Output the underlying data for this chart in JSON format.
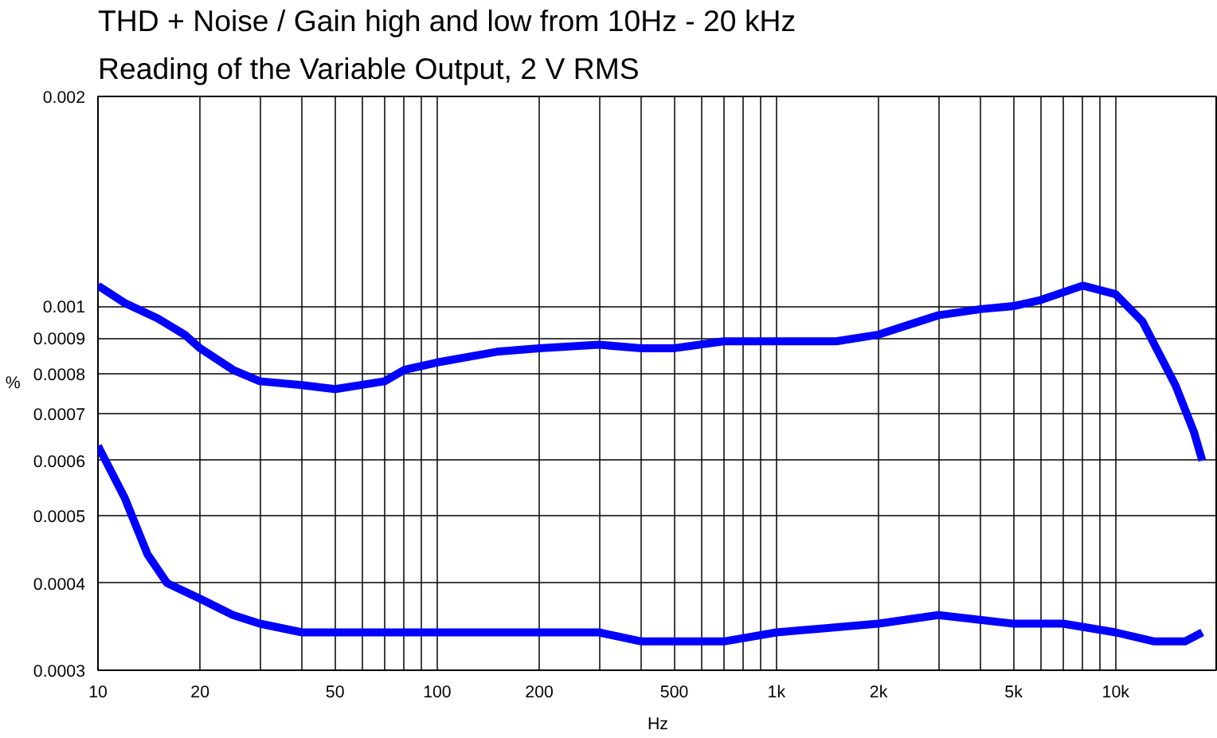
{
  "chart_data": {
    "type": "line",
    "title": "THD + Noise / Gain high and low from 10Hz - 20 kHz",
    "subtitle": "Reading of the Variable Output, 2 V RMS",
    "xlabel": "Hz",
    "ylabel": "%",
    "log": "xy",
    "grid": true,
    "marker": "none",
    "line_style": "solid",
    "xlim": [
      10,
      20000
    ],
    "ylim": [
      0.0003,
      0.002
    ],
    "xticks": [
      10,
      20,
      {
        "value": 30,
        "label": null
      },
      {
        "value": 40,
        "label": null
      },
      50,
      {
        "value": 60,
        "label": null
      },
      {
        "value": 70,
        "label": null
      },
      {
        "value": 80,
        "label": null
      },
      {
        "value": 90,
        "label": null
      },
      100,
      200,
      {
        "value": 300,
        "label": null
      },
      {
        "value": 400,
        "label": null
      },
      500,
      {
        "value": 600,
        "label": null
      },
      {
        "value": 700,
        "label": null
      },
      {
        "value": 800,
        "label": null
      },
      {
        "value": 900,
        "label": null
      },
      {
        "value": 1000,
        "label": "1k"
      },
      {
        "value": 2000,
        "label": "2k"
      },
      {
        "value": 3000,
        "label": null
      },
      {
        "value": 4000,
        "label": null
      },
      {
        "value": 5000,
        "label": "5k"
      },
      {
        "value": 6000,
        "label": null
      },
      {
        "value": 7000,
        "label": null
      },
      {
        "value": 8000,
        "label": null
      },
      {
        "value": 9000,
        "label": null
      },
      {
        "value": 10000,
        "label": "10k"
      }
    ],
    "yticks": [
      0.0003,
      0.0004,
      0.0005,
      0.0006,
      0.0007,
      0.0008,
      0.0009,
      0.001,
      0.002
    ],
    "series": [
      {
        "color": "#0000ff",
        "x": [
          10,
          12,
          15,
          18,
          20,
          25,
          30,
          40,
          50,
          70,
          80,
          100,
          150,
          200,
          300,
          400,
          500,
          700,
          1000,
          1500,
          2000,
          3000,
          4000,
          5000,
          6000,
          8000,
          10000,
          12000,
          15000,
          17000,
          18000
        ],
        "values": [
          0.00107,
          0.00101,
          0.00096,
          0.00091,
          0.00087,
          0.00081,
          0.00078,
          0.00077,
          0.00076,
          0.00078,
          0.00081,
          0.00083,
          0.00086,
          0.00087,
          0.00088,
          0.00087,
          0.00087,
          0.00089,
          0.00089,
          0.00089,
          0.00091,
          0.00097,
          0.00099,
          0.001,
          0.00102,
          0.00107,
          0.00104,
          0.00095,
          0.00077,
          0.00066,
          0.0006
        ]
      },
      {
        "color": "#0000ff",
        "x": [
          10,
          12,
          14,
          16,
          20,
          25,
          30,
          40,
          50,
          70,
          100,
          200,
          300,
          400,
          500,
          700,
          1000,
          2000,
          3000,
          5000,
          7000,
          10000,
          13000,
          16000,
          18000
        ],
        "values": [
          0.00063,
          0.00053,
          0.00044,
          0.0004,
          0.00038,
          0.00036,
          0.00035,
          0.00034,
          0.00034,
          0.00034,
          0.00034,
          0.00034,
          0.00034,
          0.00033,
          0.00033,
          0.00033,
          0.00034,
          0.00035,
          0.00036,
          0.00035,
          0.00035,
          0.00034,
          0.00033,
          0.00033,
          0.00034
        ]
      }
    ]
  }
}
